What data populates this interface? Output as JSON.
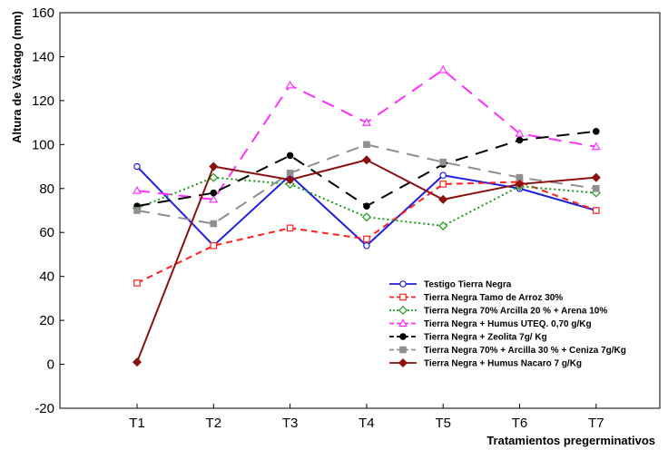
{
  "chart_data": {
    "type": "line",
    "title": "",
    "xlabel": "Tratamientos pregerminativos",
    "ylabel": "Altura de Vástago (mm)",
    "ylim": [
      -20,
      160
    ],
    "yticks": [
      -20,
      0,
      20,
      40,
      60,
      80,
      100,
      120,
      140,
      160
    ],
    "categories": [
      "T1",
      "T2",
      "T3",
      "T4",
      "T5",
      "T6",
      "T7"
    ],
    "grid": false,
    "legend_position": "bottom-right",
    "series": [
      {
        "name": "Testigo Tierra Negra",
        "color": "#1f1fdf",
        "dash": "solid",
        "marker": "circle-open",
        "values": [
          90,
          54,
          86,
          54,
          86,
          80,
          70
        ]
      },
      {
        "name": "Tierra Negra  Tamo de Arroz 30%",
        "color": "#ff2020",
        "dash": "dash",
        "marker": "square-open",
        "values": [
          37,
          54,
          62,
          57,
          82,
          83,
          70
        ]
      },
      {
        "name": "Tierra Negra 70%  Arcilla 20 % + Arena 10%",
        "color": "#1a9a1a",
        "dash": "dot",
        "marker": "diamond-open",
        "values": [
          71,
          85,
          82,
          67,
          63,
          81,
          78
        ]
      },
      {
        "name": "Tierra Negra + Humus UTEQ. 0,70 g/Kg",
        "color": "#ff30ff",
        "dash": "longdash",
        "marker": "triangle-open",
        "values": [
          79,
          75,
          127,
          110,
          134,
          105,
          99
        ]
      },
      {
        "name": "Tierra Negra + Zeolita 7g/ Kg",
        "color": "#000000",
        "dash": "longdash",
        "marker": "circle-filled",
        "values": [
          72,
          78,
          95,
          72,
          91,
          102,
          106
        ]
      },
      {
        "name": "Tierra Negra 70% + Arcilla 30 % + Ceniza 7g/Kg",
        "color": "#909090",
        "dash": "longdash",
        "marker": "square-filled",
        "values": [
          70,
          64,
          87,
          100,
          92,
          85,
          80
        ]
      },
      {
        "name": "Tierra Negra + Humus Nacaro 7 g/Kg",
        "color": "#8b1010",
        "dash": "solid",
        "marker": "diamond-filled",
        "values": [
          1,
          90,
          84,
          93,
          75,
          82,
          85
        ]
      }
    ]
  }
}
